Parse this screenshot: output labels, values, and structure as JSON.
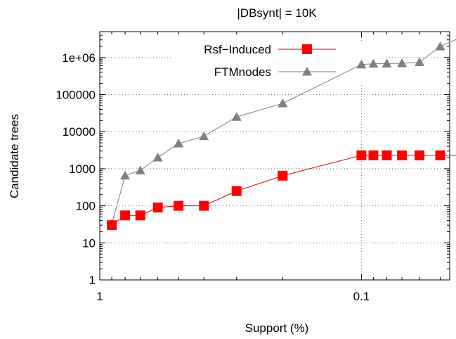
{
  "chart_data": {
    "type": "line",
    "title": "|DBsynt| = 10K",
    "xlabel": "Support (%)",
    "ylabel": "Candidate trees",
    "x_scale": "log",
    "x_reversed": true,
    "xlim": [
      1.0,
      0.046
    ],
    "y_scale": "log",
    "ylim": [
      1,
      5000000
    ],
    "grid": true,
    "legend_position": "top-right",
    "x_ticks": [
      {
        "value": 1,
        "label": "1"
      },
      {
        "value": 0.1,
        "label": "0.1"
      }
    ],
    "y_ticks": [
      {
        "value": 1,
        "label": "1"
      },
      {
        "value": 10,
        "label": "10"
      },
      {
        "value": 100,
        "label": "100"
      },
      {
        "value": 1000,
        "label": "1000"
      },
      {
        "value": 10000,
        "label": "10000"
      },
      {
        "value": 100000,
        "label": "100000"
      },
      {
        "value": 1000000,
        "label": "1e+06"
      }
    ],
    "series": [
      {
        "name": "Rsf−Induced",
        "color": "#ff0000",
        "line_color": "#e00000",
        "marker": "square",
        "x": [
          0.9,
          0.8,
          0.7,
          0.6,
          0.5,
          0.4,
          0.3,
          0.2,
          0.1,
          0.09,
          0.08,
          0.07,
          0.06,
          0.05,
          0.04
        ],
        "y": [
          30,
          55,
          55,
          90,
          100,
          100,
          250,
          650,
          2300,
          2300,
          2300,
          2300,
          2300,
          2300,
          2300
        ]
      },
      {
        "name": "FTMnodes",
        "color": "#808080",
        "line_color": "#808080",
        "marker": "triangle",
        "x": [
          0.9,
          0.8,
          0.7,
          0.6,
          0.5,
          0.4,
          0.3,
          0.2,
          0.1,
          0.09,
          0.08,
          0.07,
          0.06,
          0.05,
          0.04
        ],
        "y": [
          32,
          650,
          900,
          2000,
          4800,
          7500,
          25000,
          58000,
          650000,
          680000,
          690000,
          700000,
          750000,
          2000000,
          4000000
        ]
      }
    ]
  }
}
